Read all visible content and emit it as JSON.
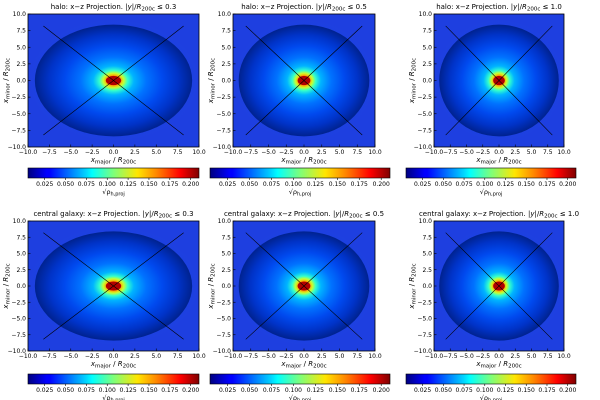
{
  "chart_data": [
    {
      "type": "heatmap",
      "component": "halo",
      "projection": "x−z Projection",
      "cut": "0.3",
      "xlabel": "x_major / R_200c",
      "ylabel": "x_minor / R_200c",
      "xlim": [
        -10,
        10
      ],
      "ylim": [
        -10,
        10
      ],
      "xticks": [
        "−10.0",
        "−7.5",
        "−5.0",
        "−2.5",
        "0.0",
        "2.5",
        "5.0",
        "7.5",
        "10.0"
      ],
      "yticks": [
        "−10.0",
        "−7.5",
        "−5.0",
        "−2.5",
        "0.0",
        "2.5",
        "5.0",
        "7.5",
        "10.0"
      ],
      "colorbar": {
        "label": "√ρ_h,proj",
        "range": [
          0.005,
          0.21
        ],
        "ticks": [
          "0.025",
          "0.050",
          "0.075",
          "0.100",
          "0.125",
          "0.150",
          "0.175",
          "0.200"
        ]
      },
      "colormap": "jet",
      "peak": {
        "x": 0.0,
        "y": 0.0,
        "value": 0.21
      }
    },
    {
      "type": "heatmap",
      "component": "halo",
      "projection": "x−z Projection",
      "cut": "0.5",
      "xlabel": "x_major / R_200c",
      "ylabel": "x_minor / R_200c",
      "xlim": [
        -10,
        10
      ],
      "ylim": [
        -10,
        10
      ],
      "xticks": [
        "−10.0",
        "−7.5",
        "−5.0",
        "−2.5",
        "0.0",
        "2.5",
        "5.0",
        "7.5",
        "10.0"
      ],
      "yticks": [
        "−10.0",
        "−7.5",
        "−5.0",
        "−2.5",
        "0.0",
        "2.5",
        "5.0",
        "7.5",
        "10.0"
      ],
      "colorbar": {
        "label": "√ρ_h,proj",
        "range": [
          0.005,
          0.21
        ],
        "ticks": [
          "0.025",
          "0.050",
          "0.075",
          "0.100",
          "0.125",
          "0.150",
          "0.175",
          "0.200"
        ]
      },
      "colormap": "jet",
      "peak": {
        "x": 0.0,
        "y": 0.0,
        "value": 0.21
      }
    },
    {
      "type": "heatmap",
      "component": "halo",
      "projection": "x−z Projection",
      "cut": "1.0",
      "xlabel": "x_major / R_200c",
      "ylabel": "x_minor / R_200c",
      "xlim": [
        -10,
        10
      ],
      "ylim": [
        -10,
        10
      ],
      "xticks": [
        "−10.0",
        "−7.5",
        "−5.0",
        "−2.5",
        "0.0",
        "2.5",
        "5.0",
        "7.5",
        "10.0"
      ],
      "yticks": [
        "−10.0",
        "−7.5",
        "−5.0",
        "−2.5",
        "0.0",
        "2.5",
        "5.0",
        "7.5",
        "10.0"
      ],
      "colorbar": {
        "label": "√ρ_h,proj",
        "range": [
          0.005,
          0.21
        ],
        "ticks": [
          "0.025",
          "0.050",
          "0.075",
          "0.100",
          "0.125",
          "0.150",
          "0.175",
          "0.200"
        ]
      },
      "colormap": "jet",
      "peak": {
        "x": 0.0,
        "y": 0.0,
        "value": 0.21
      }
    },
    {
      "type": "heatmap",
      "component": "central galaxy",
      "projection": "x−z Projection",
      "cut": "0.3",
      "xlabel": "x_major / R_200c",
      "ylabel": "x_minor / R_200c",
      "xlim": [
        -10,
        10
      ],
      "ylim": [
        -10,
        10
      ],
      "xticks": [
        "−10.0",
        "−7.5",
        "−5.0",
        "−2.5",
        "0.0",
        "2.5",
        "5.0",
        "7.5",
        "10.0"
      ],
      "yticks": [
        "−10.0",
        "−7.5",
        "−5.0",
        "−2.5",
        "0.0",
        "2.5",
        "5.0",
        "7.5",
        "10.0"
      ],
      "colorbar": {
        "label": "√ρ_h,proj",
        "range": [
          0.005,
          0.21
        ],
        "ticks": [
          "0.025",
          "0.050",
          "0.075",
          "0.100",
          "0.125",
          "0.150",
          "0.175",
          "0.200"
        ]
      },
      "colormap": "jet",
      "peak": {
        "x": 0.0,
        "y": 0.0,
        "value": 0.21
      }
    },
    {
      "type": "heatmap",
      "component": "central galaxy",
      "projection": "x−z Projection",
      "cut": "0.5",
      "xlabel": "x_major / R_200c",
      "ylabel": "x_minor / R_200c",
      "xlim": [
        -10,
        10
      ],
      "ylim": [
        -10,
        10
      ],
      "xticks": [
        "−10.0",
        "−7.5",
        "−5.0",
        "−2.5",
        "0.0",
        "2.5",
        "5.0",
        "7.5",
        "10.0"
      ],
      "yticks": [
        "−10.0",
        "−7.5",
        "−5.0",
        "−2.5",
        "0.0",
        "2.5",
        "5.0",
        "7.5",
        "10.0"
      ],
      "colorbar": {
        "label": "√ρ_h,proj",
        "range": [
          0.005,
          0.21
        ],
        "ticks": [
          "0.025",
          "0.050",
          "0.075",
          "0.100",
          "0.125",
          "0.150",
          "0.175",
          "0.200"
        ]
      },
      "colormap": "jet",
      "peak": {
        "x": 0.0,
        "y": 0.0,
        "value": 0.21
      }
    },
    {
      "type": "heatmap",
      "component": "central galaxy",
      "projection": "x−z Projection",
      "cut": "1.0",
      "xlabel": "x_major / R_200c",
      "ylabel": "x_minor / R_200c",
      "xlim": [
        -10,
        10
      ],
      "ylim": [
        -10,
        10
      ],
      "xticks": [
        "−10.0",
        "−7.5",
        "−5.0",
        "−2.5",
        "0.0",
        "2.5",
        "5.0",
        "7.5",
        "10.0"
      ],
      "yticks": [
        "−10.0",
        "−7.5",
        "−5.0",
        "−2.5",
        "0.0",
        "2.5",
        "5.0",
        "7.5",
        "10.0"
      ],
      "colorbar": {
        "label": "√ρ_h,proj",
        "range": [
          0.005,
          0.21
        ],
        "ticks": [
          "0.025",
          "0.050",
          "0.075",
          "0.100",
          "0.125",
          "0.150",
          "0.175",
          "0.200"
        ]
      },
      "colormap": "jet",
      "peak": {
        "x": 0.0,
        "y": 0.0,
        "value": 0.21
      }
    }
  ]
}
